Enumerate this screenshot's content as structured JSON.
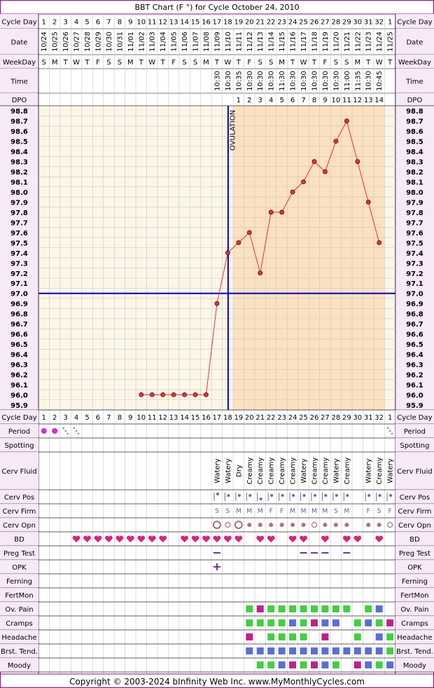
{
  "title": "BBT Chart (F °) for Cycle October 24, 2010",
  "footer": "Copyright © 2003-2024 bInfinity Web Inc.     www.MyMonthlyCycles.com",
  "colors": {
    "frame": "#A0007A",
    "label_bg": "#F7E9F7",
    "grid_bg_pre": "#FBF6E6",
    "grid_bg_post": "#FBE6C6",
    "grid_post_overlay": "#FBE1C0",
    "grid_line": "#C8C8C8",
    "coverline": "#0000CC",
    "temp_line": "#E8322C",
    "dot_fill": "#E8322C",
    "period_dot": "#E020E0",
    "heart": "#E0207A",
    "green": "#40D040",
    "blue": "#5A6ED8",
    "magenta": "#C02088",
    "plus": "#7030A0"
  },
  "header_labels": {
    "cycle_day": "Cycle Day",
    "date": "Date",
    "weekday": "WeekDay",
    "time": "Time",
    "dpo": "DPO"
  },
  "cycle_days": [
    "1",
    "2",
    "3",
    "4",
    "5",
    "6",
    "7",
    "8",
    "9",
    "10",
    "11",
    "12",
    "13",
    "14",
    "15",
    "16",
    "17",
    "18",
    "19",
    "20",
    "21",
    "22",
    "23",
    "24",
    "25",
    "26",
    "27",
    "28",
    "29",
    "30",
    "31",
    "32",
    "1"
  ],
  "dates": [
    "10/24",
    "10/25",
    "10/26",
    "10/27",
    "10/28",
    "10/29",
    "10/30",
    "10/31",
    "11/01",
    "11/02",
    "11/03",
    "11/04",
    "11/05",
    "11/06",
    "11/07",
    "11/08",
    "11/09",
    "11/10",
    "11/11",
    "11/12",
    "11/13",
    "11/14",
    "11/15",
    "11/16",
    "11/17",
    "11/18",
    "11/19",
    "11/20",
    "11/21",
    "11/22",
    "11/23",
    "11/24",
    "11/25"
  ],
  "weekdays": [
    "S",
    "M",
    "T",
    "W",
    "T",
    "F",
    "S",
    "S",
    "M",
    "T",
    "W",
    "T",
    "F",
    "S",
    "S",
    "M",
    "T",
    "W",
    "T",
    "F",
    "S",
    "S",
    "M",
    "T",
    "W",
    "T",
    "F",
    "S",
    "S",
    "M",
    "T",
    "W",
    "T"
  ],
  "times": [
    "",
    "",
    "",
    "",
    "",
    "",
    "",
    "",
    "",
    "",
    "",
    "",
    "",
    "",
    "",
    "",
    "10:30",
    "10:30",
    "10:35",
    "10:30",
    "10:30",
    "10:30",
    "11:30",
    "10:30",
    "10:30",
    "10:30",
    "10:30",
    "10:30",
    "11:00",
    "11:35",
    "10:30",
    "10:45",
    ""
  ],
  "dpo": [
    "",
    "",
    "",
    "",
    "",
    "",
    "",
    "",
    "",
    "",
    "",
    "",
    "",
    "",
    "",
    "",
    "",
    "",
    "1",
    "2",
    "3",
    "4",
    "5",
    "6",
    "7",
    "8",
    "9",
    "10",
    "11",
    "12",
    "13",
    "14",
    ""
  ],
  "chart_data": {
    "type": "line",
    "title": "BBT Chart (F °) for Cycle October 24, 2010",
    "ylim": [
      95.9,
      98.8
    ],
    "y_ticks": [
      "98.8",
      "98.7",
      "98.6",
      "98.5",
      "98.4",
      "98.3",
      "98.2",
      "98.1",
      "98.0",
      "97.9",
      "97.8",
      "97.7",
      "97.6",
      "97.5",
      "97.4",
      "97.3",
      "97.2",
      "97.1",
      "97.0",
      "96.9",
      "96.8",
      "96.7",
      "96.6",
      "96.5",
      "96.4",
      "96.3",
      "96.2",
      "96.1",
      "96.0",
      "95.9"
    ],
    "coverline": 97.0,
    "ovulation_day": 18,
    "ovulation_label": "OVULATION",
    "series": [
      {
        "x": [
          10,
          11,
          12,
          13,
          14,
          15,
          16,
          17,
          18,
          19,
          20,
          21,
          22,
          23,
          24,
          25,
          26,
          27,
          28,
          29,
          30,
          31,
          32
        ],
        "values": [
          96.0,
          96.0,
          96.0,
          96.0,
          96.0,
          96.0,
          96.0,
          96.9,
          97.4,
          97.5,
          97.6,
          97.2,
          97.8,
          97.8,
          98.0,
          98.1,
          98.3,
          98.2,
          98.5,
          98.7,
          98.3,
          97.9,
          97.5
        ]
      }
    ]
  },
  "rows": [
    {
      "label": "Cycle Day",
      "kind": "cycleday"
    },
    {
      "label": "Period",
      "kind": "period",
      "cells": {
        "1": "heavy",
        "2": "heavy",
        "3": "light",
        "4": "light",
        "33": "light"
      }
    },
    {
      "label": "Spotting",
      "kind": "empty"
    },
    {
      "label": "Cerv Fluid",
      "kind": "fluid",
      "cells": {
        "17": "Watery",
        "18": "Watery",
        "19": "Dry",
        "20": "Creamy",
        "21": "Creamy",
        "22": "Creamy",
        "23": "Creamy",
        "24": "Creamy",
        "25": "Watery",
        "26": "Creamy",
        "27": "Creamy",
        "28": "Watery",
        "29": "Creamy",
        "31": "Watery",
        "32": "Creamy",
        "33": "Watery"
      }
    },
    {
      "label": "Cerv Pos",
      "kind": "cervpos",
      "cells": {
        "17": "hi",
        "18": "mid",
        "19": "mid",
        "20": "mid",
        "21": "low",
        "22": "mid",
        "23": "mid",
        "24": "mid",
        "25": "mid",
        "26": "mid",
        "27": "mid",
        "28": "mid",
        "29": "mid",
        "31": "mid",
        "32": "mid",
        "33": "mid"
      }
    },
    {
      "label": "Cerv Firm",
      "kind": "letters",
      "cells": {
        "17": "S",
        "18": "S",
        "19": "M",
        "20": "M",
        "21": "M",
        "22": "F",
        "23": "F",
        "24": "M",
        "25": "M",
        "26": "M",
        "27": "M",
        "28": "S",
        "29": "M",
        "31": "F",
        "32": "S",
        "33": "F"
      }
    },
    {
      "label": "Cerv Opn",
      "kind": "opn",
      "cells": {
        "17": "big",
        "18": "small",
        "19": "big",
        "20": "dot",
        "21": "dot",
        "22": "dot",
        "23": "dot",
        "24": "dot",
        "25": "dot",
        "26": "small",
        "27": "dot",
        "28": "dot",
        "29": "dot",
        "31": "dot",
        "32": "dot",
        "33": "small"
      }
    },
    {
      "label": "BD",
      "kind": "hearts",
      "cells": [
        "4",
        "5",
        "6",
        "7",
        "8",
        "9",
        "10",
        "11",
        "12",
        "14",
        "15",
        "16",
        "17",
        "18",
        "19",
        "21",
        "22",
        "24",
        "25",
        "27",
        "29",
        "30",
        "32"
      ]
    },
    {
      "label": "Preg Test",
      "kind": "dash",
      "cells": [
        "17",
        "25",
        "26",
        "27",
        "29"
      ]
    },
    {
      "label": "OPK",
      "kind": "plus",
      "cells": [
        "17"
      ]
    },
    {
      "label": "Ferning",
      "kind": "empty"
    },
    {
      "label": "FertMon",
      "kind": "empty"
    },
    {
      "label": "Ov. Pain",
      "kind": "squares",
      "cells": {
        "20": "green",
        "21": "magenta",
        "22": "green",
        "23": "green",
        "24": "green",
        "25": "green",
        "26": "green",
        "27": "green",
        "28": "green",
        "29": "green",
        "31": "green",
        "32": "blue"
      }
    },
    {
      "label": "Cramps",
      "kind": "squares",
      "cells": {
        "20": "green",
        "21": "green",
        "22": "green",
        "23": "green",
        "24": "blue",
        "25": "green",
        "26": "magenta",
        "27": "blue",
        "28": "blue",
        "30": "green",
        "31": "blue",
        "32": "green",
        "33": "magenta"
      }
    },
    {
      "label": "Headache",
      "kind": "squares",
      "cells": {
        "20": "magenta",
        "22": "green",
        "23": "green",
        "24": "green",
        "25": "green",
        "27": "magenta",
        "30": "green",
        "32": "blue",
        "33": "green"
      }
    },
    {
      "label": "Brst. Tend.",
      "kind": "squares",
      "cells": {
        "20": "blue",
        "21": "blue",
        "22": "blue",
        "23": "blue",
        "24": "blue",
        "25": "blue",
        "26": "blue",
        "27": "blue",
        "28": "blue",
        "29": "blue",
        "30": "blue",
        "31": "blue",
        "32": "blue",
        "33": "green"
      }
    },
    {
      "label": "Moody",
      "kind": "squares",
      "cells": {
        "21": "green",
        "22": "green",
        "23": "blue",
        "24": "magenta",
        "25": "green",
        "26": "magenta",
        "27": "blue",
        "28": "green",
        "30": "magenta",
        "31": "blue",
        "32": "green",
        "33": "blue"
      }
    }
  ]
}
